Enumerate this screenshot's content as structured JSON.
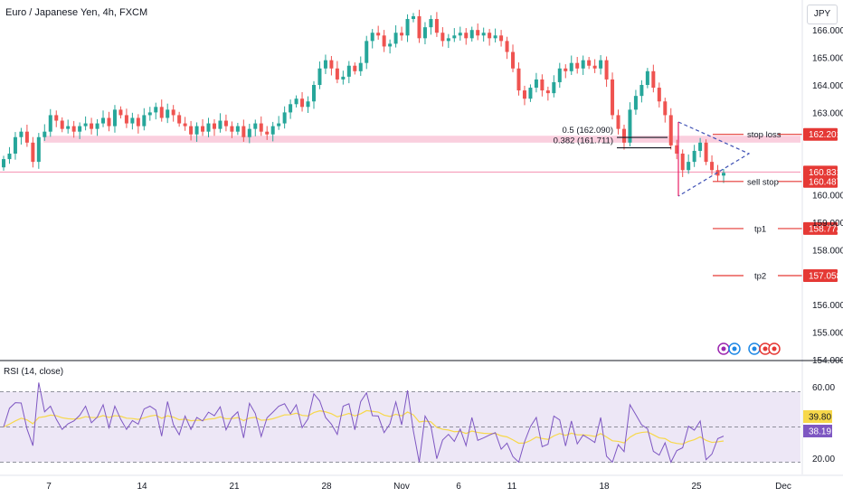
{
  "header": {
    "title": "Euro / Japanese Yen, 4h, FXCM",
    "currency": "JPY"
  },
  "rsi": {
    "label": "RSI (14, close)",
    "levels": [
      60,
      40,
      20
    ],
    "tick_labels": [
      "60.00",
      "20.00"
    ],
    "yellow_value": "39.80",
    "purple_value": "38.19",
    "colors": {
      "line": "#7e57c2",
      "ma": "#f7d84a",
      "band": "#ede7f6"
    }
  },
  "chart_data": {
    "type": "candlestick",
    "x_tick_labels": [
      "7",
      "14",
      "21",
      "28",
      "Nov",
      "6",
      "11",
      "18",
      "25",
      "Dec"
    ],
    "y_tick_labels": [
      "166.000",
      "165.000",
      "164.000",
      "163.000",
      "160.000",
      "159.000",
      "158.000",
      "156.000",
      "155.000",
      "154.000"
    ],
    "ylim": [
      154.0,
      166.6
    ],
    "candles_close": [
      161.3,
      161.5,
      162.1,
      162.3,
      161.9,
      161.2,
      162.1,
      162.3,
      162.9,
      162.7,
      162.4,
      162.5,
      162.3,
      162.5,
      162.6,
      162.4,
      162.6,
      162.8,
      162.5,
      163.1,
      162.9,
      162.6,
      162.8,
      162.5,
      162.9,
      163.0,
      163.2,
      162.8,
      163.1,
      162.9,
      162.6,
      162.5,
      162.2,
      162.5,
      162.3,
      162.6,
      162.4,
      162.7,
      162.5,
      162.3,
      162.5,
      162.1,
      162.4,
      162.6,
      162.3,
      162.2,
      162.5,
      162.6,
      163.0,
      163.3,
      163.5,
      163.2,
      163.4,
      164.0,
      164.6,
      164.9,
      164.6,
      164.2,
      164.3,
      164.7,
      164.5,
      164.8,
      165.6,
      165.9,
      165.8,
      165.4,
      165.5,
      165.9,
      165.8,
      166.4,
      166.5,
      165.7,
      166.1,
      166.4,
      165.9,
      165.6,
      165.7,
      165.8,
      165.9,
      165.7,
      166.0,
      165.8,
      165.9,
      165.7,
      165.8,
      165.6,
      165.2,
      164.6,
      163.8,
      163.5,
      163.9,
      164.2,
      163.8,
      163.7,
      164.1,
      164.6,
      164.5,
      164.8,
      164.6,
      164.9,
      164.7,
      164.6,
      164.9,
      164.2,
      162.9,
      162.4,
      161.9,
      163.1,
      163.6,
      164.0,
      164.5,
      163.9,
      163.4,
      162.9,
      161.8,
      161.5,
      160.9,
      161.2,
      161.6,
      161.9,
      161.2,
      160.9,
      160.7,
      160.8
    ],
    "levels": [
      {
        "name": "stop loss",
        "value": "162.201",
        "price": 162.201
      },
      {
        "name": "sell stop",
        "value": "160.487",
        "price": 160.487
      },
      {
        "name": "tp1",
        "value": "158.772",
        "price": 158.772
      },
      {
        "name": "tp2",
        "value": "157.058",
        "price": 157.058
      },
      {
        "name": "",
        "value": "160.831",
        "price": 160.831
      }
    ],
    "fib": [
      {
        "label": "0.5 (162.090)",
        "price": 162.09
      },
      {
        "label": "0.382 (161.711)",
        "price": 161.711
      }
    ],
    "zone": {
      "from": 161.9,
      "to": 162.15
    },
    "colors": {
      "up": "#26a69a",
      "down": "#ef5350",
      "tag": "#e53935",
      "zone": "#f8bbd0"
    }
  }
}
